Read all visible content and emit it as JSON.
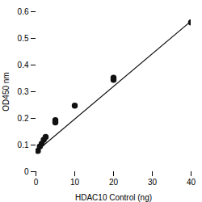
{
  "chart_data": {
    "type": "scatter",
    "xlabel": "HDAC10 Control (ng)",
    "ylabel": "OD450 nm",
    "series": [
      {
        "type": "line",
        "color": "#111111",
        "x": [
          0.0,
          40.0
        ],
        "values": [
          0.075,
          0.565
        ]
      },
      {
        "type": "scatter",
        "color": "#111111",
        "x": [
          0.5,
          1.0,
          1.5,
          2.0,
          2.5,
          5.0,
          5.0,
          10.0,
          20.0,
          20.0,
          40.0
        ],
        "values": [
          0.078,
          0.095,
          0.105,
          0.12,
          0.13,
          0.185,
          0.193,
          0.248,
          0.345,
          0.352,
          0.56
        ]
      }
    ],
    "xlim": [
      0,
      40
    ],
    "ylim": [
      0,
      0.6
    ],
    "xticks": [
      0,
      10,
      20,
      30,
      40
    ],
    "yticks": [
      0,
      0.1,
      0.2,
      0.3,
      0.4,
      0.5,
      0.6
    ]
  }
}
